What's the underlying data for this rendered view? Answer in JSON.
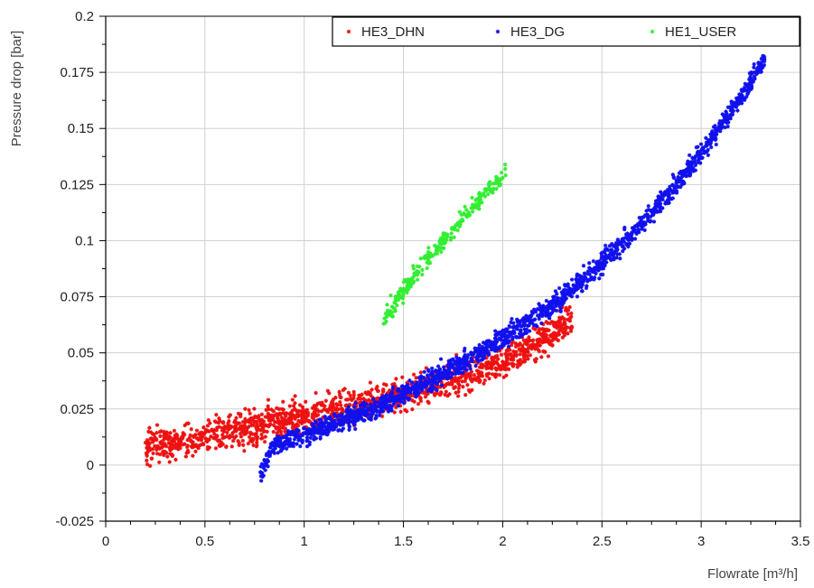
{
  "chart_data": {
    "type": "scatter",
    "title": "",
    "xlabel": "Flowrate [m³/h]",
    "ylabel": "Pressure drop [bar]",
    "xlim": [
      0,
      3.5
    ],
    "ylim": [
      -0.025,
      0.2
    ],
    "x_ticks": [
      0,
      0.5,
      1,
      1.5,
      2,
      2.5,
      3,
      3.5
    ],
    "x_tick_labels": [
      "0",
      "0.5",
      "1",
      "1.5",
      "2",
      "2.5",
      "3",
      "3.5"
    ],
    "y_ticks": [
      -0.025,
      0,
      0.025,
      0.05,
      0.075,
      0.1,
      0.125,
      0.15,
      0.175,
      0.2
    ],
    "y_tick_labels": [
      "-0.025",
      "0",
      "0.025",
      "0.05",
      "0.075",
      "0.1",
      "0.125",
      "0.15",
      "0.175",
      "0.2"
    ],
    "grid": true,
    "legend_position": "top-right",
    "series": [
      {
        "name": "HE3_DHN",
        "color": "#ee1111",
        "marker": "star",
        "trend": [
          [
            0.2,
            0.008
          ],
          [
            0.5,
            0.012
          ],
          [
            0.8,
            0.018
          ],
          [
            1.0,
            0.022
          ],
          [
            1.3,
            0.027
          ],
          [
            1.6,
            0.034
          ],
          [
            1.8,
            0.04
          ],
          [
            2.0,
            0.047
          ],
          [
            2.2,
            0.056
          ],
          [
            2.35,
            0.065
          ]
        ]
      },
      {
        "name": "HE3_DG",
        "color": "#1111ee",
        "marker": "star",
        "trend": [
          [
            0.78,
            -0.003
          ],
          [
            0.85,
            0.009
          ],
          [
            1.0,
            0.013
          ],
          [
            1.2,
            0.02
          ],
          [
            1.4,
            0.027
          ],
          [
            1.6,
            0.036
          ],
          [
            1.8,
            0.046
          ],
          [
            2.0,
            0.056
          ],
          [
            2.2,
            0.068
          ],
          [
            2.4,
            0.082
          ],
          [
            2.6,
            0.098
          ],
          [
            2.8,
            0.117
          ],
          [
            3.0,
            0.139
          ],
          [
            3.2,
            0.164
          ],
          [
            3.32,
            0.181
          ]
        ]
      },
      {
        "name": "HE1_USER",
        "color": "#33ee33",
        "marker": "star",
        "trend": [
          [
            1.4,
            0.065
          ],
          [
            1.5,
            0.078
          ],
          [
            1.6,
            0.09
          ],
          [
            1.7,
            0.1
          ],
          [
            1.8,
            0.11
          ],
          [
            1.9,
            0.12
          ],
          [
            2.02,
            0.13
          ]
        ]
      }
    ]
  }
}
